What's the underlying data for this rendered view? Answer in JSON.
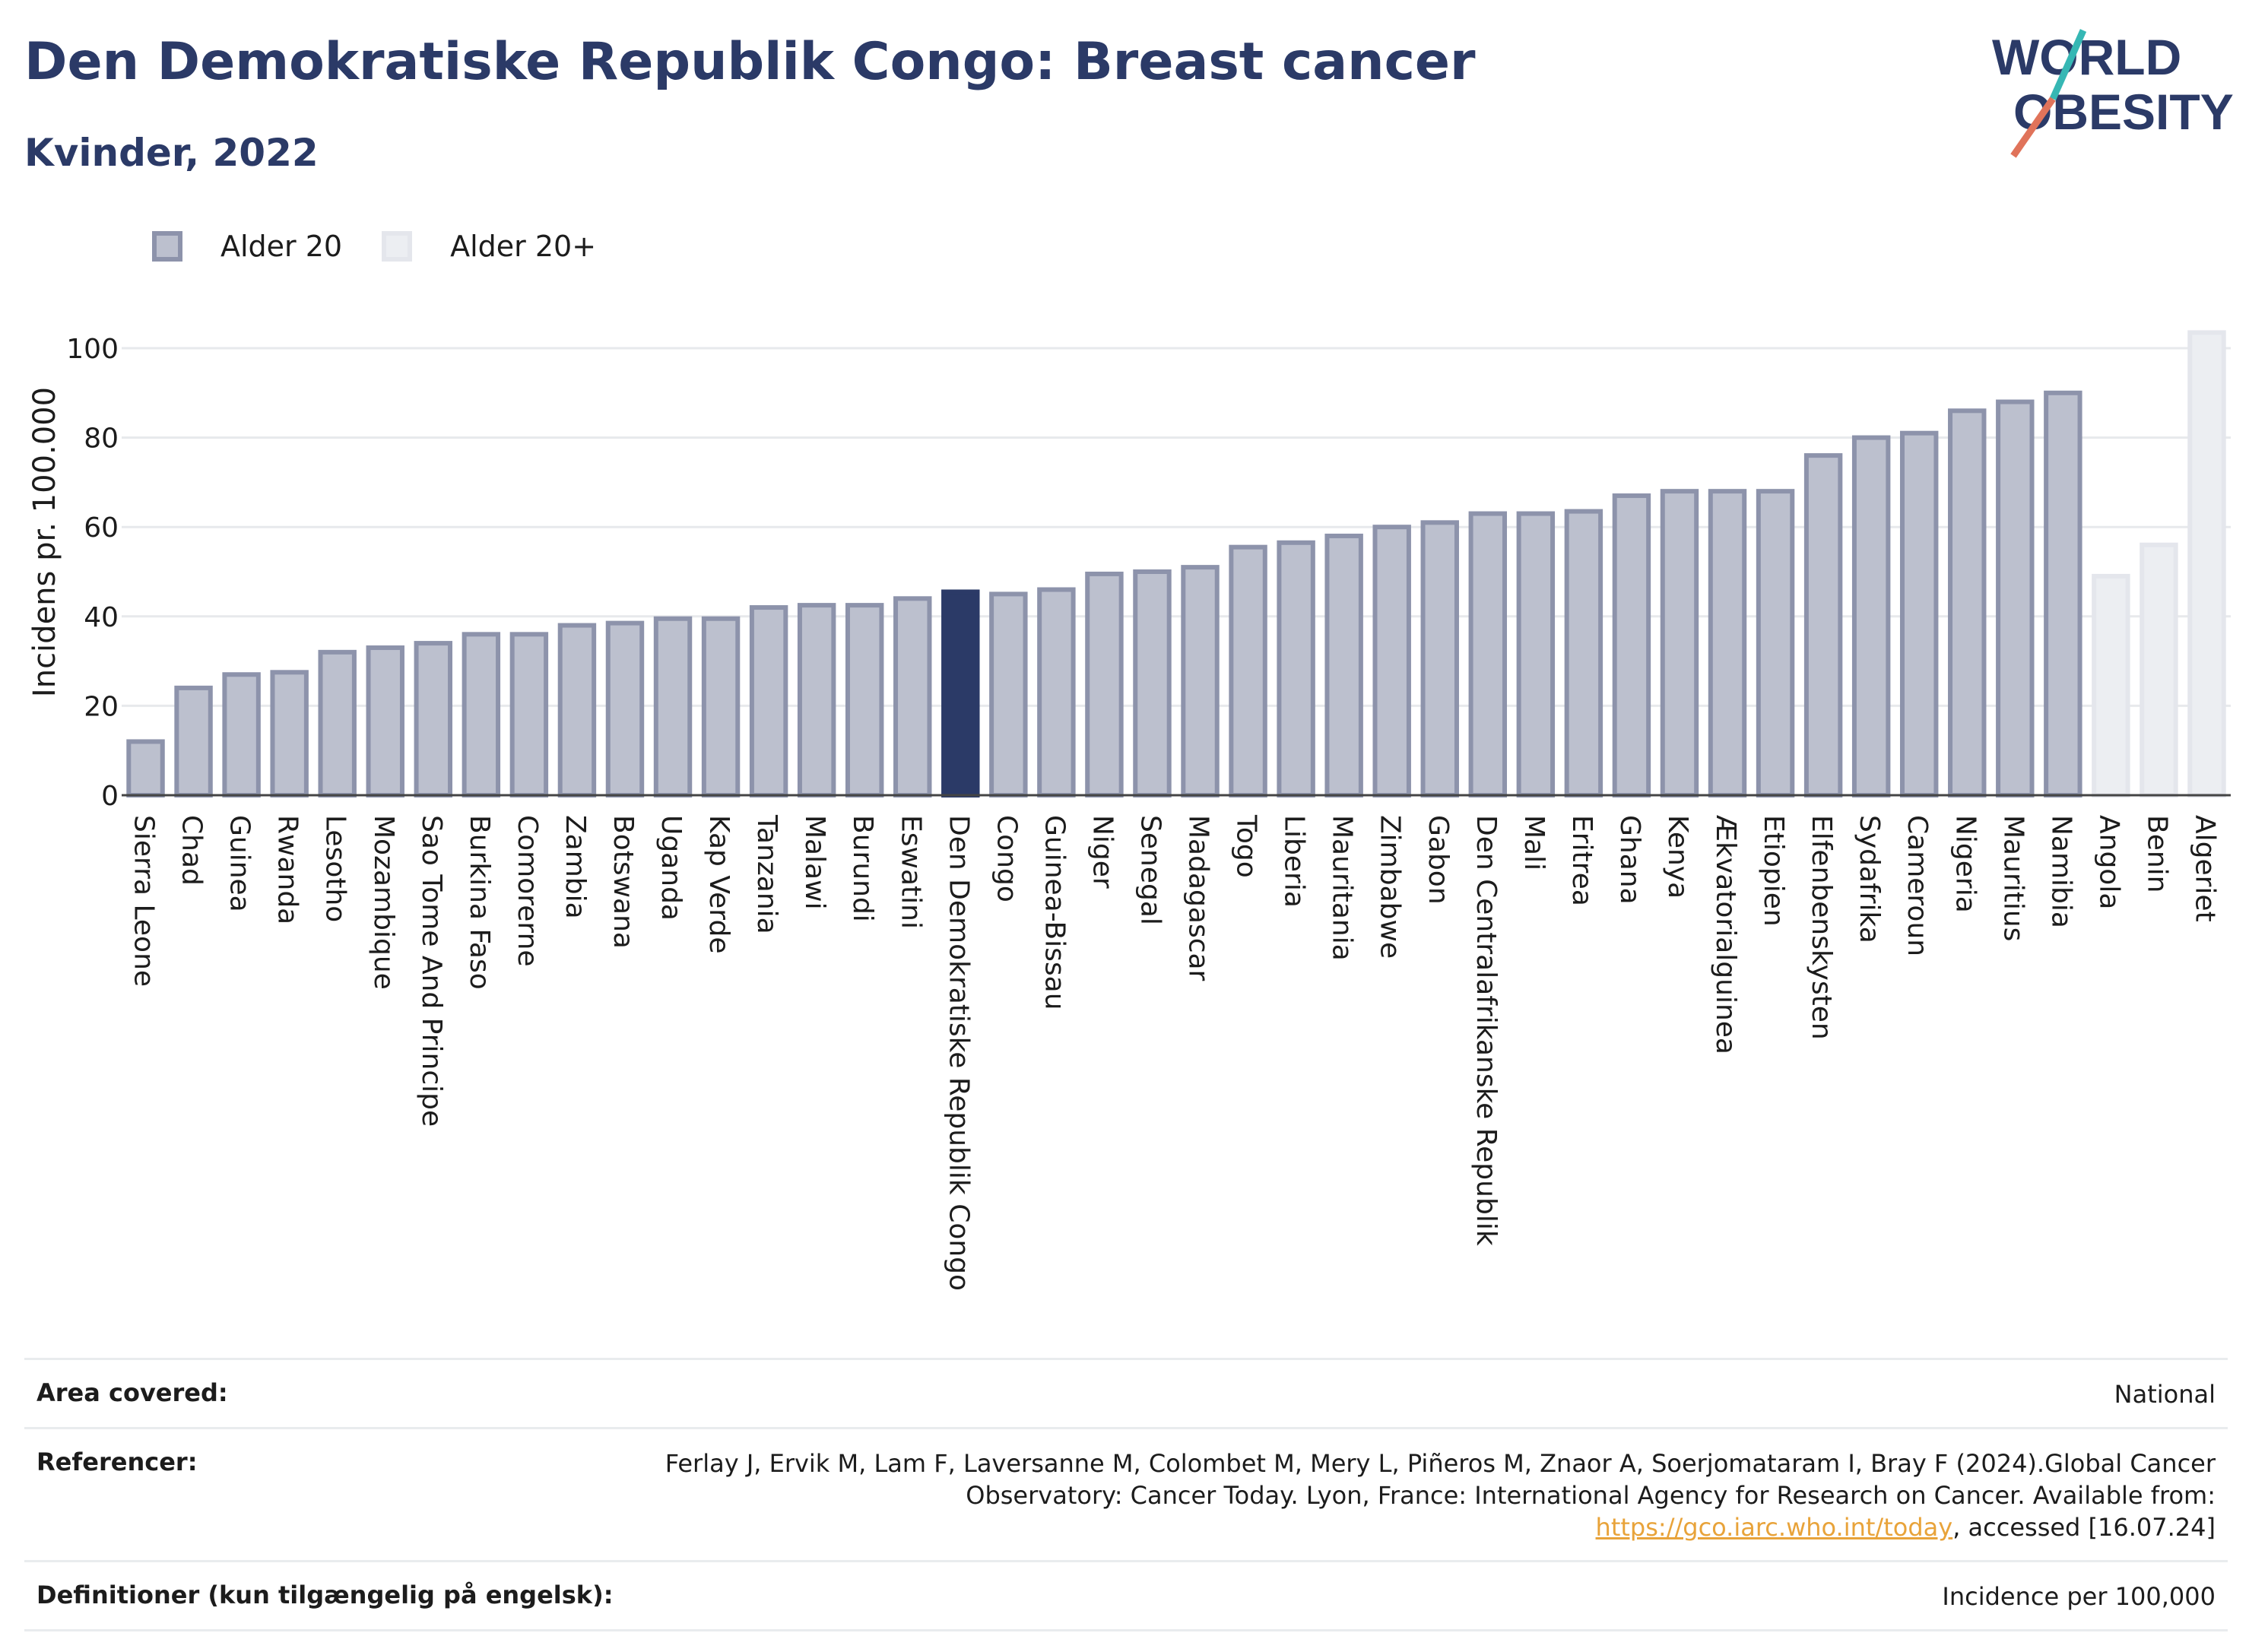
{
  "header": {
    "title": "Den Demokratiske Republik Congo: Breast cancer",
    "subtitle": "Kvinder, 2022"
  },
  "logo": {
    "line1": "WORLD",
    "line2": "OBESITY",
    "colors": {
      "text": "#2b3a67",
      "accent_teal": "#36b7b4",
      "accent_red": "#e0735a"
    }
  },
  "legend": [
    {
      "label": "Alder 20",
      "color": "#bcc0ce"
    },
    {
      "label": "Alder 20+",
      "color": "#eceef2"
    }
  ],
  "chart_data": {
    "type": "bar",
    "ylabel": "Incidens pr. 100.000",
    "xlabel": "",
    "ylim": [
      0,
      105
    ],
    "yticks": [
      0,
      20,
      40,
      60,
      80,
      100
    ],
    "grid": true,
    "legend_position": "top-left",
    "highlight_category": "Den Demokratiske Republik Congo",
    "colors": {
      "Alder 20": "#bcc0ce",
      "Alder 20+": "#eceef2",
      "highlight": "#2b3a67"
    },
    "categories": [
      "Sierra Leone",
      "Chad",
      "Guinea",
      "Rwanda",
      "Lesotho",
      "Mozambique",
      "Sao Tome And Principe",
      "Burkina Faso",
      "Comorerne",
      "Zambia",
      "Botswana",
      "Uganda",
      "Kap Verde",
      "Tanzania",
      "Malawi",
      "Burundi",
      "Eswatini",
      "Den Demokratiske Republik Congo",
      "Congo",
      "Guinea-Bissau",
      "Niger",
      "Senegal",
      "Madagascar",
      "Togo",
      "Liberia",
      "Mauritania",
      "Zimbabwe",
      "Gabon",
      "Den Centralafrikanske Republik",
      "Mali",
      "Eritrea",
      "Ghana",
      "Kenya",
      "Ækvatorialguinea",
      "Etiopien",
      "Elfenbenskysten",
      "Sydafrika",
      "Cameroun",
      "Nigeria",
      "Mauritius",
      "Namibia",
      "Angola",
      "Benin",
      "Algeriet"
    ],
    "values": [
      12,
      24,
      27,
      27.5,
      32,
      33,
      34,
      36,
      36,
      38,
      38.5,
      39.5,
      39.5,
      42,
      42.5,
      42.5,
      44,
      45.5,
      45,
      46,
      49.5,
      50,
      51,
      55.5,
      56.5,
      58,
      60,
      61,
      63,
      63,
      63.5,
      67,
      68,
      68,
      68,
      76,
      80,
      81,
      86,
      88,
      90,
      49,
      56,
      103.5
    ],
    "series_group": [
      "Alder 20",
      "Alder 20",
      "Alder 20",
      "Alder 20",
      "Alder 20",
      "Alder 20",
      "Alder 20",
      "Alder 20",
      "Alder 20",
      "Alder 20",
      "Alder 20",
      "Alder 20",
      "Alder 20",
      "Alder 20",
      "Alder 20",
      "Alder 20",
      "Alder 20",
      "Alder 20",
      "Alder 20",
      "Alder 20",
      "Alder 20",
      "Alder 20",
      "Alder 20",
      "Alder 20",
      "Alder 20",
      "Alder 20",
      "Alder 20",
      "Alder 20",
      "Alder 20",
      "Alder 20",
      "Alder 20",
      "Alder 20",
      "Alder 20",
      "Alder 20",
      "Alder 20",
      "Alder 20",
      "Alder 20",
      "Alder 20",
      "Alder 20",
      "Alder 20",
      "Alder 20",
      "Alder 20+",
      "Alder 20+",
      "Alder 20+"
    ]
  },
  "info_table": {
    "area_label": "Area covered:",
    "area_value": "National",
    "ref_label": "Referencer:",
    "ref_text_1": "Ferlay J, Ervik M, Lam F, Laversanne M, Colombet M, Mery L, Piñeros M, Znaor A, Soerjomataram I, Bray F (2024).Global Cancer Observatory: Cancer Today. Lyon, France: International Agency for Research on Cancer. Available from: ",
    "ref_link": "https://gco.iarc.who.int/today",
    "ref_text_2": ", accessed [16.07.24]",
    "def_label": "Definitioner (kun tilgængelig på engelsk):",
    "def_value": "Incidence per 100,000"
  }
}
